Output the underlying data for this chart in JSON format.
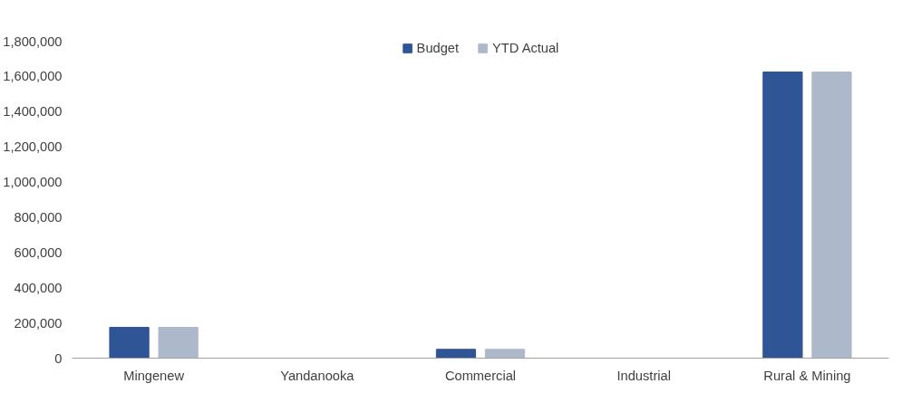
{
  "chart_data": {
    "type": "bar",
    "categories": [
      "Mingenew",
      "Yandanooka",
      "Commercial",
      "Industrial",
      "Rural & Mining"
    ],
    "series": [
      {
        "name": "Budget",
        "color": "#2f5597",
        "values": [
          175000,
          0,
          50000,
          0,
          1625000
        ]
      },
      {
        "name": "YTD Actual",
        "color": "#adb9ca",
        "values": [
          175000,
          0,
          50000,
          0,
          1625000
        ]
      }
    ],
    "ylim": [
      0,
      1800000
    ],
    "yticks": [
      {
        "value": 0,
        "label": "0"
      },
      {
        "value": 200000,
        "label": "200,000"
      },
      {
        "value": 400000,
        "label": "400,000"
      },
      {
        "value": 600000,
        "label": "600,000"
      },
      {
        "value": 800000,
        "label": "800,000"
      },
      {
        "value": 1000000,
        "label": "1,000,000"
      },
      {
        "value": 1200000,
        "label": "1,200,000"
      },
      {
        "value": 1400000,
        "label": "1,400,000"
      },
      {
        "value": 1600000,
        "label": "1,600,000"
      },
      {
        "value": 1800000,
        "label": "1,800,000"
      }
    ],
    "grid": false,
    "legend": "top"
  }
}
